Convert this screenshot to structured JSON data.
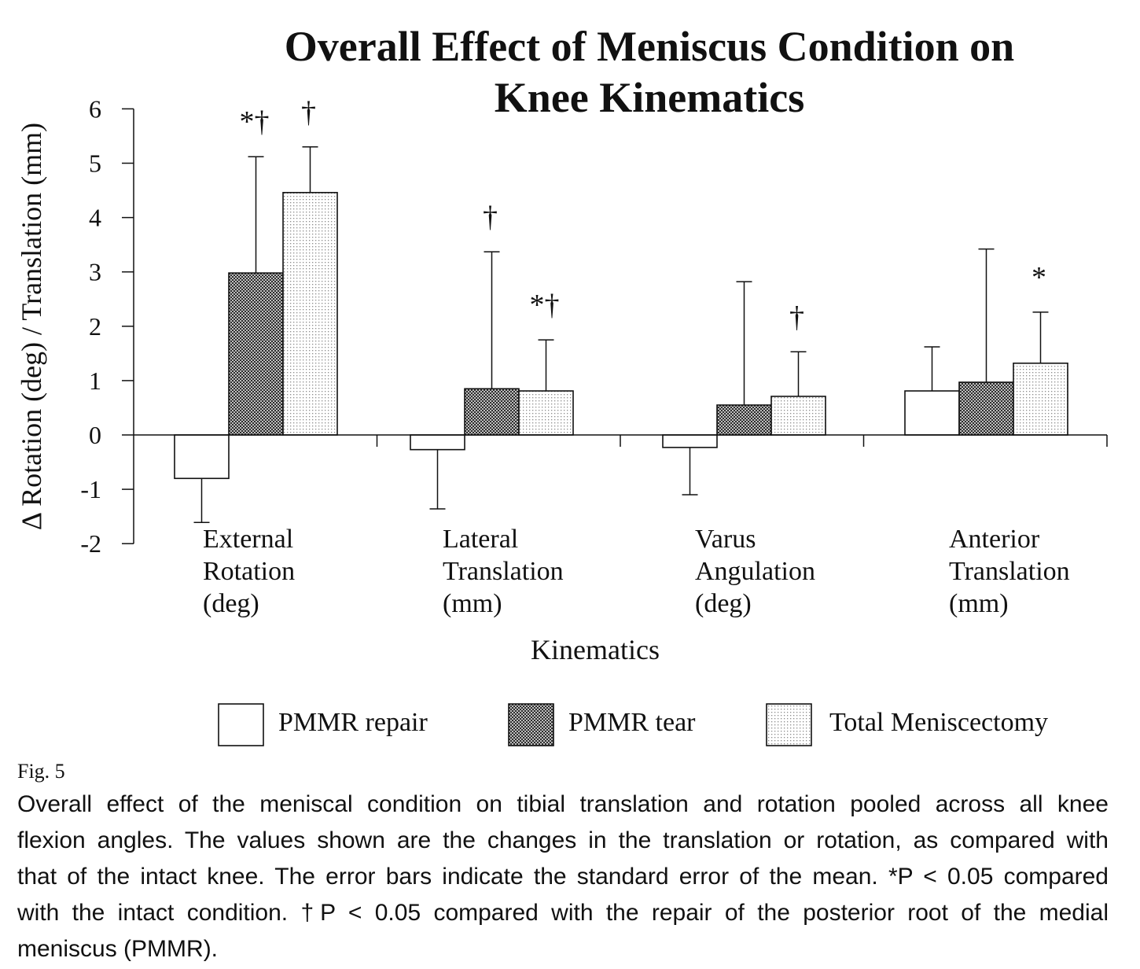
{
  "figure": {
    "label": "Fig. 5",
    "caption_lines": [
      "Overall effect of the meniscal condition on tibial translation and rotation pooled across all knee",
      "flexion angles. The values shown are the changes in the translation or rotation, as compared with",
      "that of the intact knee. The error bars indicate the standard error of the mean. *P < 0.05 compared",
      "with the intact condition. †P < 0.05 compared with the repair of the posterior root of the medial",
      "meniscus (PMMR)."
    ]
  },
  "chart_data": {
    "type": "bar",
    "title": "Overall Effect of Meniscus Condition on Knee Kinematics",
    "xlabel": "Kinematics",
    "ylabel": "Δ Rotation (deg) / Translation (mm)",
    "ylim": [
      -2,
      6
    ],
    "yticks": [
      6,
      5,
      4,
      3,
      2,
      1,
      0,
      -1,
      -2
    ],
    "grid": false,
    "legend_position": "bottom",
    "categories": [
      "External Rotation (deg)",
      "Lateral Translation (mm)",
      "Varus Angulation (deg)",
      "Anterior Translation (mm)"
    ],
    "series": [
      {
        "name": "PMMR repair",
        "fill": "white",
        "values": [
          -0.8,
          -0.27,
          -0.23,
          0.81
        ],
        "error": [
          0.81,
          1.09,
          0.87,
          0.81
        ]
      },
      {
        "name": "PMMR tear",
        "fill": "crosshatch",
        "values": [
          2.98,
          0.85,
          0.55,
          0.97
        ],
        "error": [
          2.14,
          2.52,
          2.27,
          2.45
        ]
      },
      {
        "name": "Total Meniscectomy",
        "fill": "dotted",
        "values": [
          4.46,
          0.81,
          0.71,
          1.32
        ],
        "error": [
          0.84,
          0.94,
          0.82,
          0.94
        ]
      }
    ],
    "annotations": [
      {
        "category": "External Rotation (deg)",
        "series": "PMMR tear",
        "text": "*†"
      },
      {
        "category": "External Rotation (deg)",
        "series": "Total Meniscectomy",
        "text": "†"
      },
      {
        "category": "Lateral Translation (mm)",
        "series": "PMMR tear",
        "text": "†"
      },
      {
        "category": "Lateral Translation (mm)",
        "series": "Total Meniscectomy",
        "text": "*†"
      },
      {
        "category": "Varus Angulation (deg)",
        "series": "Total Meniscectomy",
        "text": "†"
      },
      {
        "category": "Anterior Translation (mm)",
        "series": "Total Meniscectomy",
        "text": "*"
      }
    ]
  }
}
